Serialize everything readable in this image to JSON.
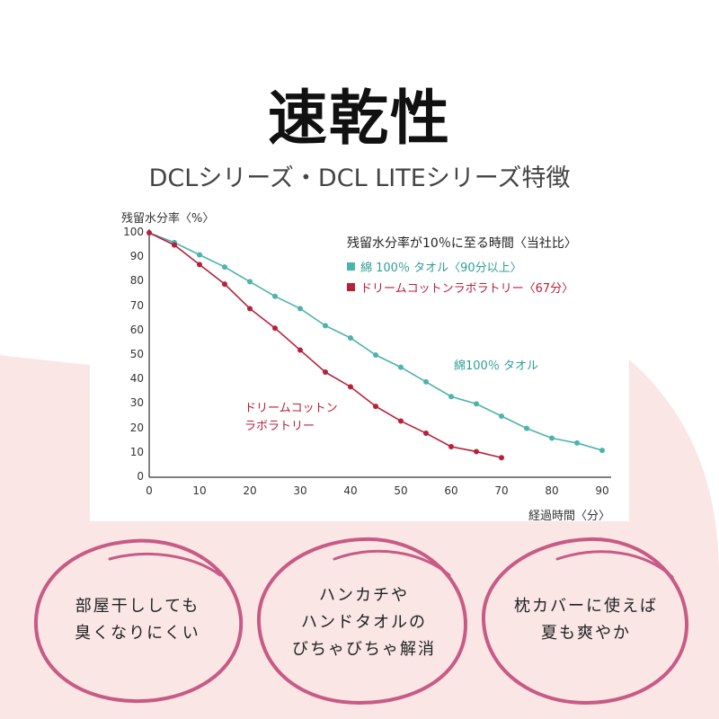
{
  "title": "速乾性",
  "subtitle": "DCLシリーズ・DCL LITEシリーズ特徴",
  "colors": {
    "cotton": "#4db3ad",
    "dream": "#b8203a",
    "pink_bg": "#f9e6e5",
    "circle": "#c85a86"
  },
  "chart_data": {
    "type": "line",
    "ylabel": "残留水分率〈%〉",
    "xlabel": "経過時間〈分〉",
    "xlim": [
      0,
      90
    ],
    "ylim": [
      0,
      100
    ],
    "x_ticks": [
      "0",
      "10",
      "20",
      "30",
      "40",
      "50",
      "60",
      "70",
      "80",
      "90"
    ],
    "y_ticks": [
      "0",
      "10",
      "20",
      "30",
      "40",
      "50",
      "60",
      "70",
      "80",
      "90",
      "100"
    ],
    "legend_title": "残留水分率が10％に至る時間〈当社比〉",
    "series": [
      {
        "name": "綿 100％ タオル〈90分以上〉",
        "x": [
          0,
          5,
          10,
          15,
          20,
          25,
          30,
          35,
          40,
          45,
          50,
          55,
          60,
          65,
          70,
          75,
          80,
          85,
          90
        ],
        "y": [
          100,
          96,
          91,
          86,
          80,
          74,
          69,
          62,
          57,
          50,
          45,
          39,
          33,
          30,
          25,
          20,
          16,
          14,
          11
        ]
      },
      {
        "name": "ドリームコットンラボラトリー〈67分〉",
        "x": [
          0,
          5,
          10,
          15,
          20,
          25,
          30,
          35,
          40,
          45,
          50,
          55,
          60,
          65,
          70
        ],
        "y": [
          100,
          95,
          87,
          79,
          69,
          61,
          52,
          43,
          37,
          29,
          23,
          18,
          12.5,
          10.5,
          8
        ]
      }
    ],
    "annotations": {
      "cotton": "綿100％ タオル",
      "dream_line1": "ドリームコットン",
      "dream_line2": "ラボラトリー"
    }
  },
  "bubbles": [
    {
      "lines": [
        "部屋干ししても",
        "臭くなりにくい"
      ]
    },
    {
      "lines": [
        "ハンカチや",
        "ハンドタオルの",
        "びちゃびちゃ解消"
      ]
    },
    {
      "lines": [
        "枕カバーに使えば",
        "夏も爽やか"
      ]
    }
  ]
}
